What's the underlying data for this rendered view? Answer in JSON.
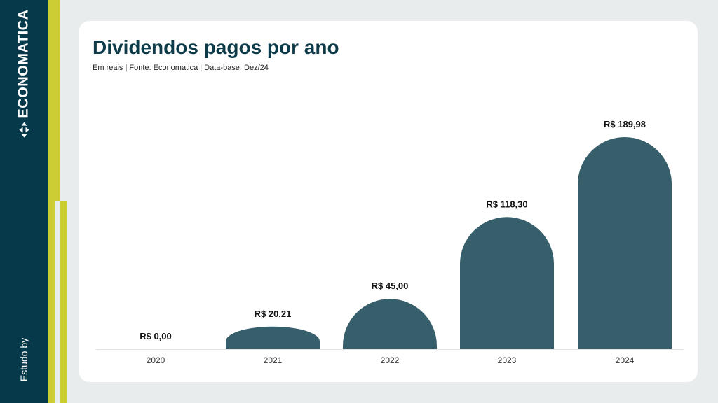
{
  "sidebar": {
    "brand": "ECONOMATICA",
    "brand_icon": "compass-arrows-icon",
    "footer_text": "Estudo by"
  },
  "colors": {
    "sidebar_bg": "#063a4b",
    "accent": "#cccc33",
    "bar": "#365f6b",
    "title": "#0d3b4a"
  },
  "chart_data": {
    "type": "bar",
    "title": "Dividendos pagos por ano",
    "subtitle": "Em reais | Fonte: Economatica | Data-base: Dez/24",
    "xlabel": "",
    "ylabel": "",
    "categories": [
      "2020",
      "2021",
      "2022",
      "2023",
      "2024"
    ],
    "values": [
      0,
      20.21,
      45.0,
      118.3,
      189.98
    ],
    "value_labels": [
      "R$ 0,00",
      "R$ 20,21",
      "R$ 45,00",
      "R$ 118,30",
      "R$ 189,98"
    ],
    "ylim": [
      0,
      200
    ],
    "grid": false,
    "legend": "none",
    "series": [
      {
        "name": "Dividendos",
        "values": [
          0,
          20.21,
          45.0,
          118.3,
          189.98
        ]
      }
    ]
  }
}
